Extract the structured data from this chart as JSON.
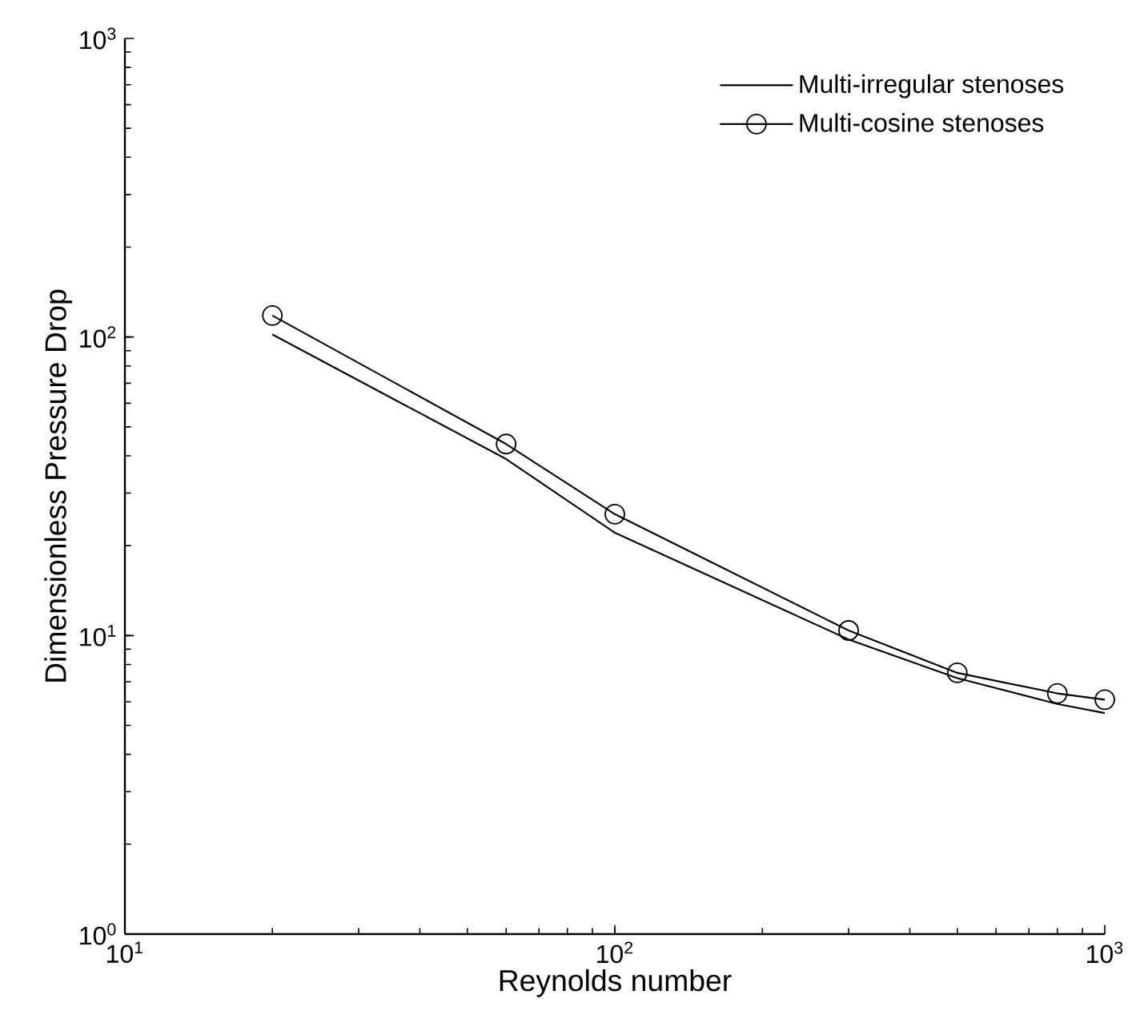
{
  "chart_data": {
    "type": "line",
    "xlabel": "Reynolds number",
    "ylabel": "Dimensionless Pressure Drop",
    "log": "xy",
    "legend": "top right",
    "grid": false,
    "x": [
      20,
      60,
      100,
      300,
      500,
      800,
      1000
    ],
    "series": [
      {
        "name": "Multi-irregular stenoses",
        "color": "#000000",
        "marker": "none",
        "line_style": "solid",
        "values": [
          102,
          39,
          22.1,
          9.7,
          7.2,
          5.9,
          5.5
        ]
      },
      {
        "name": "Multi-cosine stenoses",
        "color": "#000000",
        "marker": "circle",
        "line_style": "solid",
        "values": [
          118,
          43.8,
          25.5,
          10.4,
          7.5,
          6.4,
          6.1
        ]
      }
    ],
    "xlim": [
      10,
      1000
    ],
    "ylim": [
      1,
      1000
    ],
    "xticks": [
      {
        "value": 10,
        "label": "10$^{1}$"
      },
      {
        "value": 100,
        "label": "10$^{2}$"
      },
      {
        "value": 1000,
        "label": "10$^{3}$"
      }
    ],
    "yticks": [
      {
        "value": 1,
        "label": "10$^{0}$"
      },
      {
        "value": 10,
        "label": "10$^{1}$"
      },
      {
        "value": 100,
        "label": "10$^{2}$"
      },
      {
        "value": 1000,
        "label": "10$^{3}$"
      }
    ]
  }
}
